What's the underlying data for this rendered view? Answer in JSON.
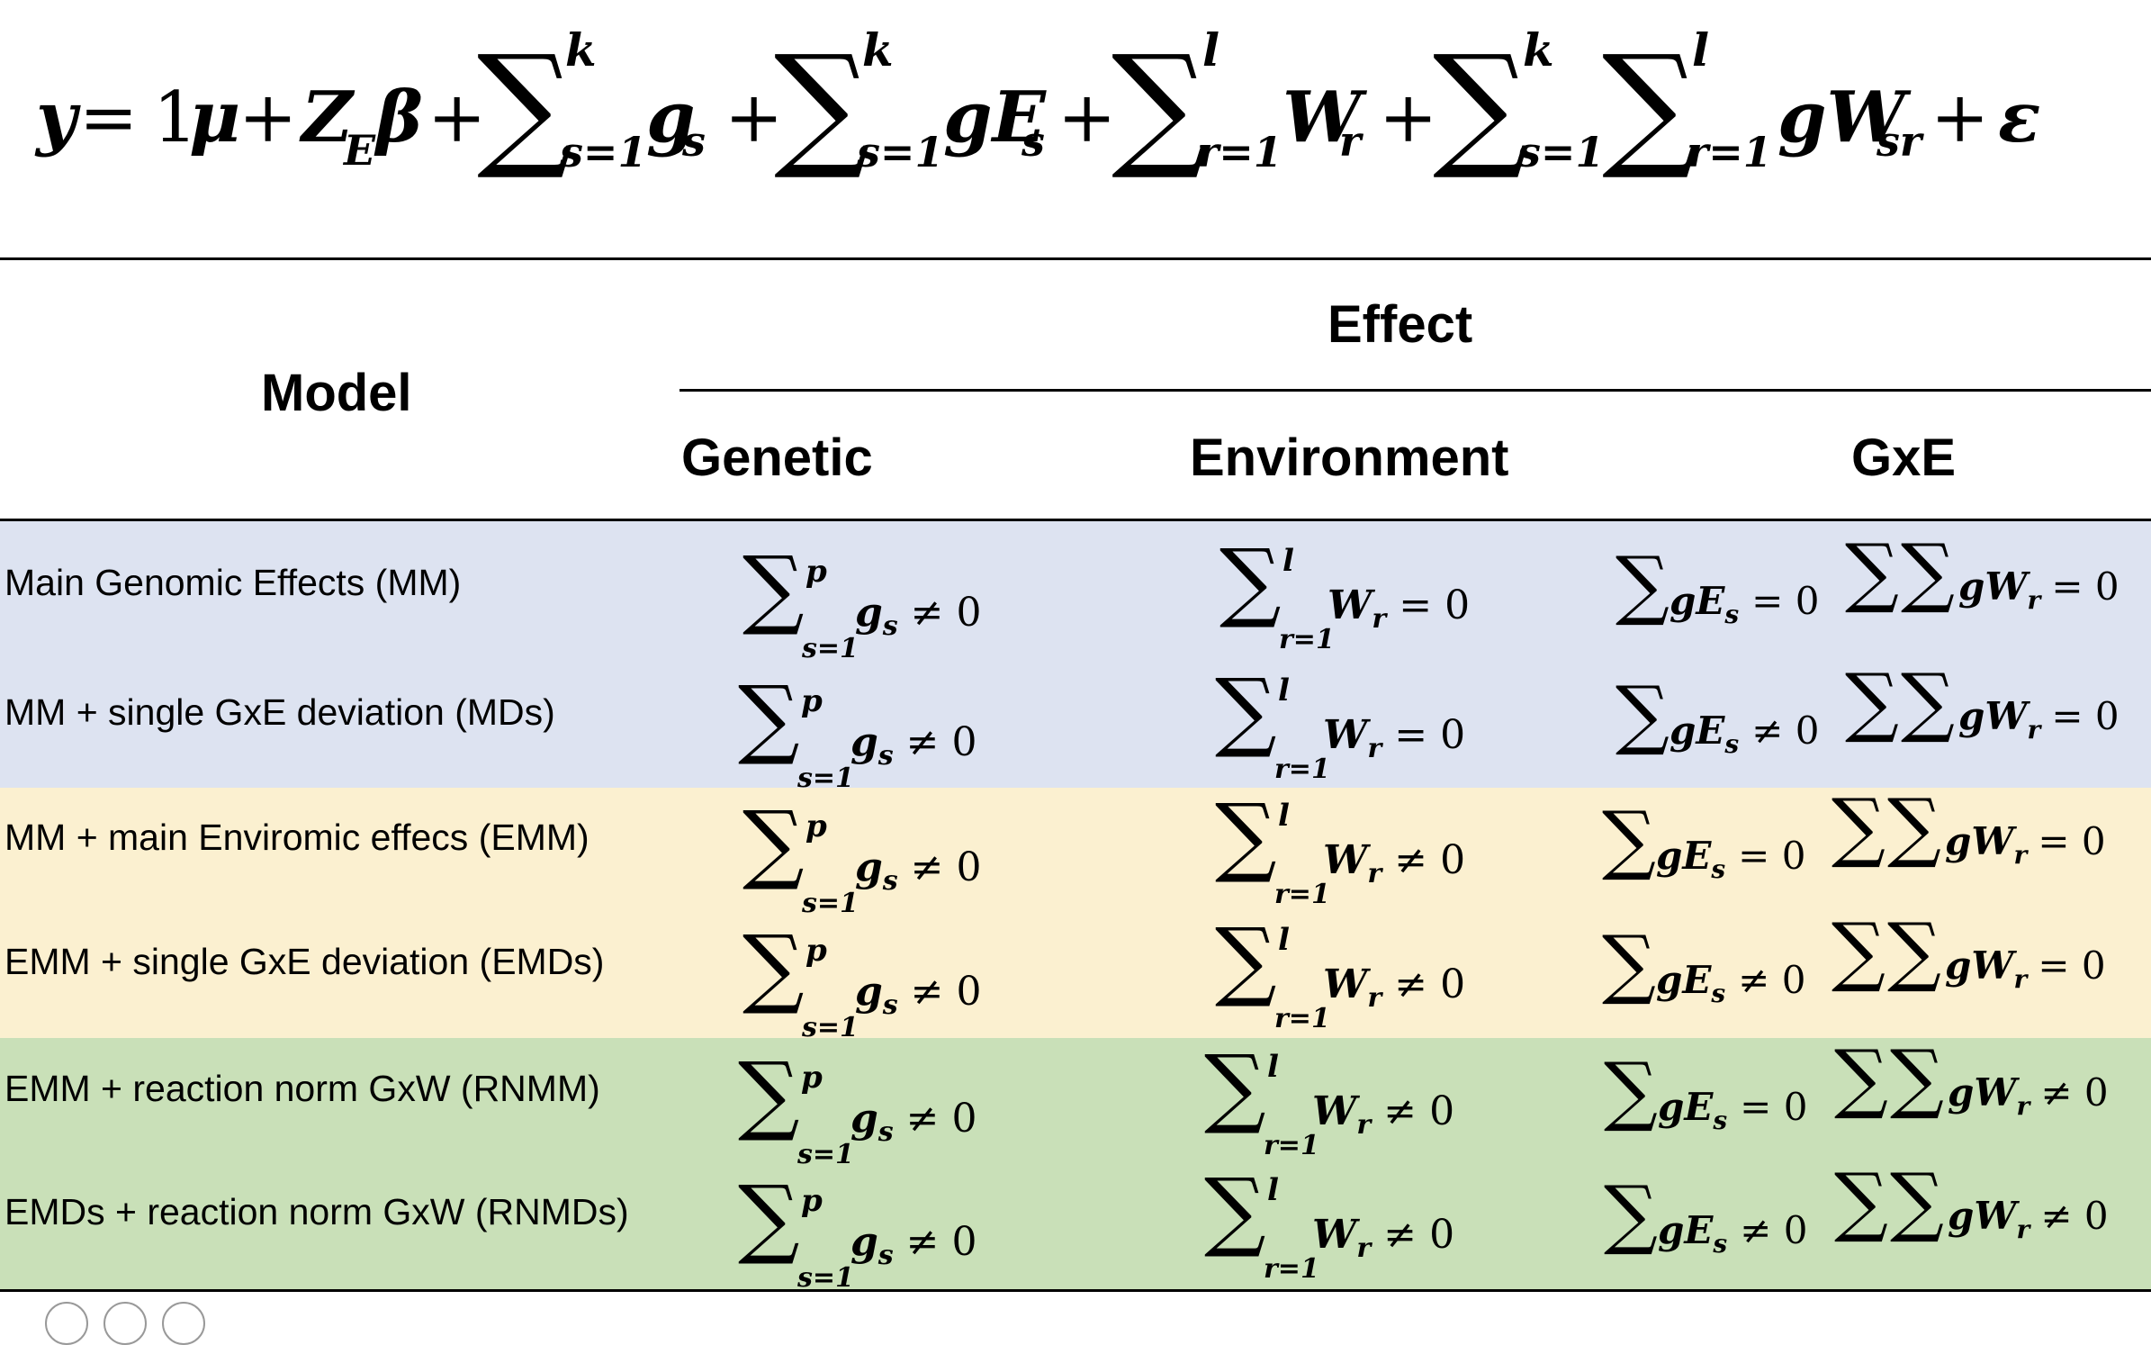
{
  "equation": {
    "y": "y",
    "eq": "=",
    "one_mu": "1",
    "mu": "μ",
    "plus": "+",
    "ZE": "Z",
    "E_sub": "E",
    "beta": "β",
    "sum": "∑",
    "k": "k",
    "l": "l",
    "s1": "s=1",
    "r1": "r=1",
    "gs": "g",
    "s": "s",
    "gE": "gE",
    "W": "W",
    "r": "r",
    "gW": "gW",
    "sr": "sr",
    "eps": "ε"
  },
  "table": {
    "header": {
      "model": "Model",
      "effect": "Effect",
      "genetic": "Genetic",
      "environment": "Environment",
      "gxe": "GxE"
    },
    "band_colors": [
      "#dde3f1",
      "#fbf0d0",
      "#c9e0b8"
    ],
    "rows": [
      {
        "label": "Main Genomic Effects (MM)",
        "genetic_op": "≠ 0",
        "env_op": "= 0",
        "gE_op": "= 0",
        "gW_op": "= 0"
      },
      {
        "label": "MM + single GxE deviation (MDs)",
        "genetic_op": "≠ 0",
        "env_op": "= 0",
        "gE_op": "≠ 0",
        "gW_op": "= 0"
      },
      {
        "label": "MM + main Enviromic effecs (EMM)",
        "genetic_op": "≠ 0",
        "env_op": "≠ 0",
        "gE_op": "= 0",
        "gW_op": "= 0"
      },
      {
        "label": "EMM + single GxE deviation (EMDs)",
        "genetic_op": "≠ 0",
        "env_op": "≠ 0",
        "gE_op": "≠ 0",
        "gW_op": "= 0"
      },
      {
        "label": "EMM + reaction norm GxW (RNMM)",
        "genetic_op": "≠ 0",
        "env_op": "≠ 0",
        "gE_op": "= 0",
        "gW_op": "≠ 0"
      },
      {
        "label": "EMDs + reaction norm GxW (RNMDs)",
        "genetic_op": "≠ 0",
        "env_op": "≠ 0",
        "gE_op": "≠ 0",
        "gW_op": "≠ 0"
      }
    ],
    "sym": {
      "sum": "∑",
      "p": "p",
      "l": "l",
      "s1": "s=1",
      "r1": "r=1",
      "g": "g",
      "s": "s",
      "W": "W",
      "r": "r",
      "gE": "gE",
      "gW": "gW"
    }
  }
}
